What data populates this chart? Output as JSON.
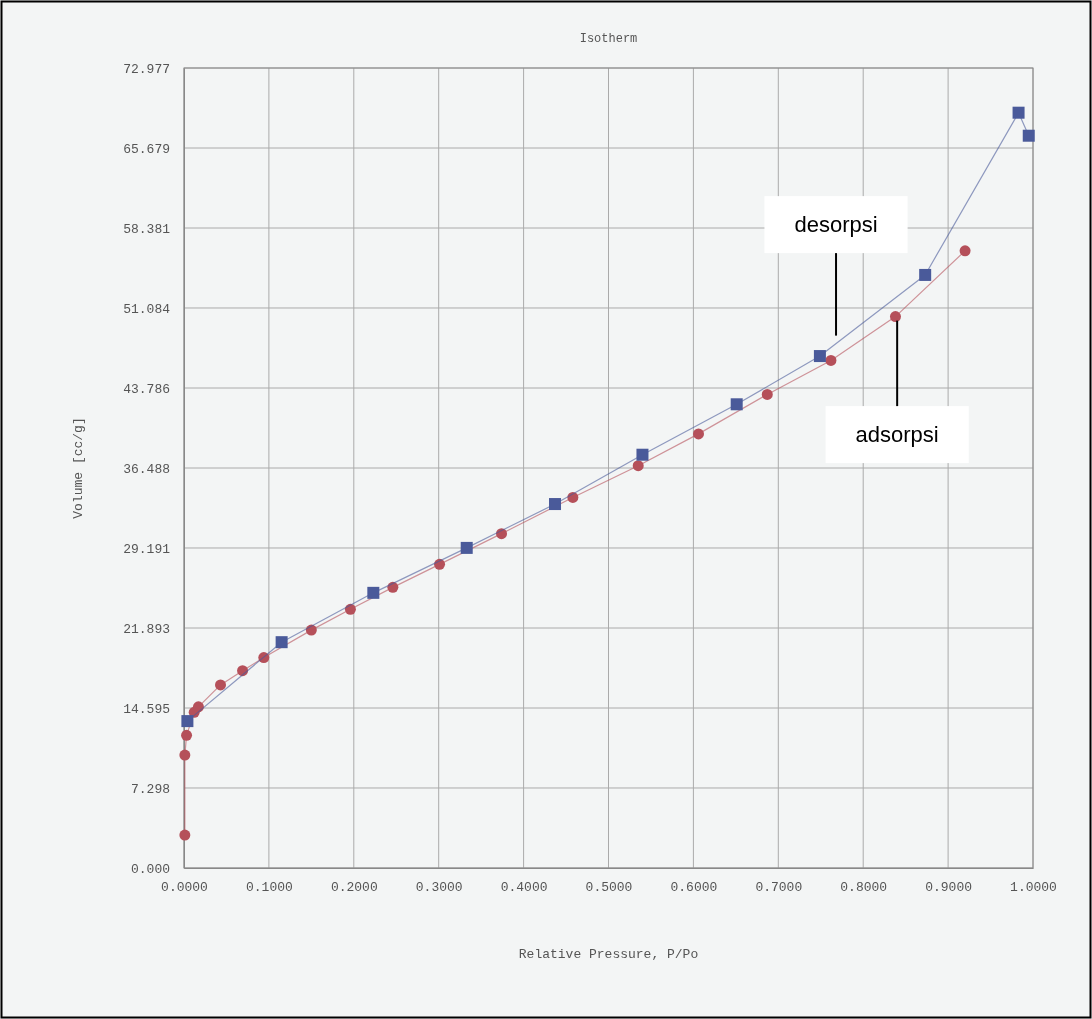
{
  "chart_data": {
    "type": "line",
    "title": "Isotherm",
    "xlabel": "Relative Pressure, P/Po",
    "ylabel": "Volume [cc/g]",
    "xlim": [
      0,
      1
    ],
    "xticks": [
      {
        "value": 0,
        "label": "0.0000"
      },
      {
        "value": 0.1,
        "label": "0.1000"
      },
      {
        "value": 0.2,
        "label": "0.2000"
      },
      {
        "value": 0.3,
        "label": "0.3000"
      },
      {
        "value": 0.4,
        "label": "0.4000"
      },
      {
        "value": 0.5,
        "label": "0.5000"
      },
      {
        "value": 0.6,
        "label": "0.6000"
      },
      {
        "value": 0.7,
        "label": "0.7000"
      },
      {
        "value": 0.8,
        "label": "0.8000"
      },
      {
        "value": 0.9,
        "label": "0.9000"
      },
      {
        "value": 1,
        "label": "1.0000"
      }
    ],
    "ylim": [
      0,
      72.977
    ],
    "yticks": [
      {
        "value": 0,
        "label": "0.000"
      },
      7.298,
      14.595,
      21.893,
      29.191,
      36.488,
      43.786,
      51.084,
      58.381,
      65.679,
      72.977
    ],
    "grid": true,
    "series": [
      {
        "color": "#b5505a",
        "marker": "circle",
        "x": [
          0.001,
          0.001,
          0.003,
          0.012,
          0.017,
          0.043,
          0.069,
          0.094,
          0.15,
          0.196,
          0.246,
          0.301,
          0.374,
          0.458,
          0.535,
          0.606,
          0.687,
          0.762,
          0.838,
          0.92
        ],
        "values": [
          3.0,
          10.3,
          12.1,
          14.2,
          14.7,
          16.7,
          18.0,
          19.2,
          21.7,
          23.6,
          25.6,
          27.7,
          30.5,
          33.8,
          36.7,
          39.6,
          43.2,
          46.3,
          50.3,
          56.3
        ]
      },
      {
        "color": "#4a5a9a",
        "marker": "square",
        "x": [
          0.995,
          0.983,
          0.873,
          0.749,
          0.651,
          0.54,
          0.437,
          0.333,
          0.223,
          0.115,
          0.004
        ],
        "values": [
          66.8,
          68.9,
          54.1,
          46.7,
          42.3,
          37.7,
          33.2,
          29.2,
          25.1,
          20.6,
          13.4
        ]
      }
    ],
    "annotations": [
      {
        "text": "desorpsi",
        "x": 0.768,
        "y": 48.2
      },
      {
        "text": "adsorpsi",
        "x": 0.84,
        "y": 50.3
      }
    ]
  }
}
